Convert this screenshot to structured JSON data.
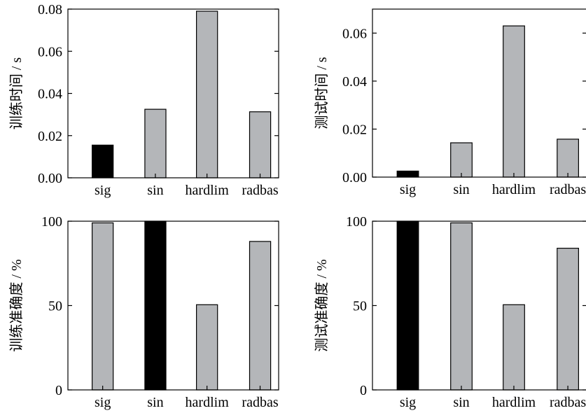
{
  "colors": {
    "highlight": "#000000",
    "normal": "#b4b6b9"
  },
  "chart_data": [
    {
      "type": "bar",
      "categories": [
        "sig",
        "sin",
        "hardlim",
        "radbas"
      ],
      "values": [
        0.0155,
        0.0325,
        0.079,
        0.0313
      ],
      "highlight_index": 0,
      "ylabel": "训练时间 / s",
      "ylim": [
        0,
        0.08
      ],
      "yticks": [
        "0.00",
        "0.02",
        "0.04",
        "0.06",
        "0.08"
      ],
      "ytick_values": [
        0,
        0.02,
        0.04,
        0.06,
        0.08
      ],
      "tick_side": "left",
      "grid": false
    },
    {
      "type": "bar",
      "categories": [
        "sig",
        "sin",
        "hardlim",
        "radbas"
      ],
      "values": [
        0.0025,
        0.0143,
        0.063,
        0.0158
      ],
      "highlight_index": 0,
      "ylabel": "测试时间 / s",
      "ylim": [
        0,
        0.07
      ],
      "yticks": [
        "0.00",
        "0.02",
        "0.04",
        "0.06"
      ],
      "ytick_values": [
        0,
        0.02,
        0.04,
        0.06
      ],
      "tick_side": "left",
      "grid": false
    },
    {
      "type": "bar",
      "categories": [
        "sig",
        "sin",
        "hardlim",
        "radbas"
      ],
      "values": [
        99,
        100,
        50.5,
        88
      ],
      "highlight_index": 1,
      "ylabel": "训练准确度 / %",
      "ylim": [
        0,
        100
      ],
      "yticks": [
        "0",
        "50",
        "100"
      ],
      "ytick_values": [
        0,
        50,
        100
      ],
      "tick_side": "left",
      "grid": false
    },
    {
      "type": "bar",
      "categories": [
        "sig",
        "sin",
        "hardlim",
        "radbas"
      ],
      "values": [
        100,
        99,
        50.5,
        84
      ],
      "highlight_index": 0,
      "ylabel": "测试准确度 / %",
      "ylim": [
        0,
        100
      ],
      "yticks": [
        "0",
        "50",
        "100"
      ],
      "ytick_values": [
        0,
        50,
        100
      ],
      "tick_side": "left",
      "grid": false
    }
  ]
}
